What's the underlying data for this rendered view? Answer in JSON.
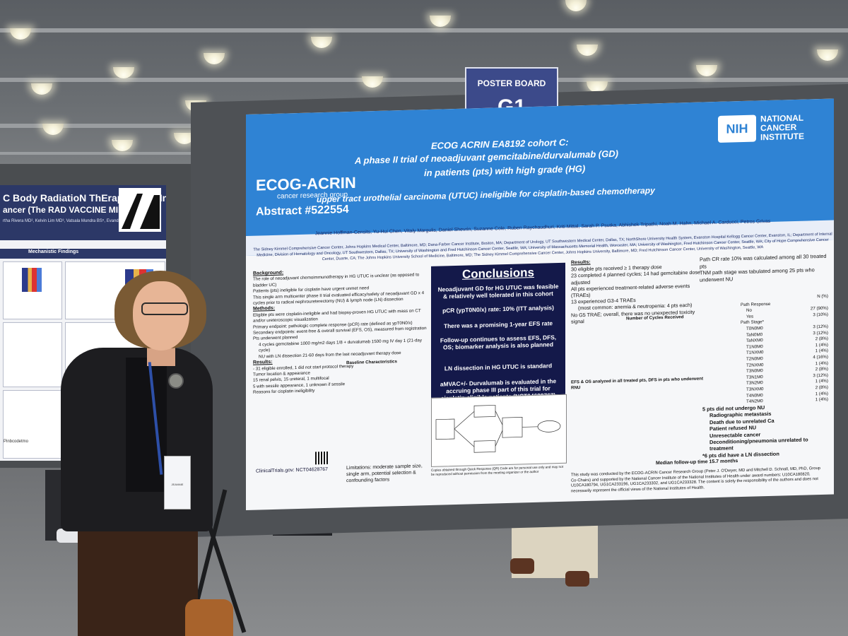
{
  "sign": {
    "label": "POSTER BOARD",
    "code": "G1"
  },
  "left_poster": {
    "title_line1": "C Body RadiatioN ThErapy as an In",
    "title_line2": "ancer (The RAD VACCINE MIBC Trial)",
    "authors": "rtha Rivera MD², Kelvin Lim MD³, Vatsala Mundra BS⁵, Evandro Luna",
    "section": "Mechanistic Findings",
    "footer": "Pinbcodetmo"
  },
  "poster": {
    "logo": "ECOG-ACRIN",
    "logo_sub": "cancer research group",
    "abstract": "Abstract #522554",
    "nih_logo": "NIH",
    "nih_text": [
      "NATIONAL",
      "CANCER",
      "INSTITUTE"
    ],
    "title_lines": [
      "ECOG ACRIN EA8192 cohort C:",
      "A phase II trial of neoadjuvant gemcitabine/durvalumab (GD)",
      "in patients (pts) with high grade (HG)",
      "upper tract urothelial carcinoma (UTUC) ineligible for cisplatin-based chemotherapy"
    ],
    "authors": "Jeannie Hoffman-Censits, Yu-Hui Chen, Vitaly Margulis, Daniel Shevrin, Suzanne Cole, Ruben Raychaudhuri, Kriti Mittal, Sarah P. Psutka, Abhishek Tripathi, Noah M. Hahn, Michael A. Carducci, Petros Grivas",
    "affiliations": "The Sidney Kimmel Comprehensive Cancer Center, Johns Hopkins Medical Center, Baltimore, MD; Dana-Farber Cancer Institute, Boston, MA; Department of Urology, UT Southwestern Medical Center, Dallas, TX; NorthShore University Health System, Evanston Hospital Kellogg Cancer Center, Evanston, IL; Department of Internal Medicine, Division of Hematology and Oncology, UT Southwestern, Dallas, TX; University of Washington and Fred Hutchinson Cancer Center, Seattle, WA; University of Massachusetts Memorial Health, Worcester, MA; University of Washington, Fred Hutchinson Cancer Center, Seattle, WA; City of Hope Comprehensive Cancer Center, Duarte, CA; The Johns Hopkins University School of Medicine, Baltimore, MD; The Sidney Kimmel Comprehensive Cancer Center, Johns Hopkins University, Baltimore, MD; Fred Hutchinson Cancer Center, University of Washington, Seattle, WA",
    "background_head": "Background:",
    "background": [
      "The role of neoadjuvant chemoimmunotherapy in HG UTUC is unclear (as opposed to bladder UC)",
      "Patients (pts) ineligible for cisplatin have urgent unmet need",
      "This single arm multicenter phase II trial evaluated efficacy/safety of neoadjuvant GD x 4 cycles prior to radical nephroureterectomy (NU) & lymph node (LN) dissection"
    ],
    "methods_head": "Methods:",
    "methods": [
      "Eligible pts were cisplatin-ineligible and had biopsy-proven HG UTUC with mass on CT and/or ureteroscopic visualization",
      "Primary endpoint: pathologic complete response (pCR) rate (defined as ypT0N0/x)",
      "Secondary endpoints: event-free & overall survival (EFS, OS), measured from registration",
      "Pts underwent planned",
      "4 cycles gemcitabine 1000 mg/m2 days 1/8 + durvalumab 1500 mg IV day 1 (21-day cycle)",
      "NU with LN dissection 21-60 days from the last neoadjuvant therapy dose"
    ],
    "results_head": "Results:",
    "results_left": [
      "- 31 eligible enrolled, 1 did not start protocol therapy",
      "Tumor location & appearance",
      "15 renal pelvis, 15 ureteral, 1 multifocal",
      "5 with sessile appearance, 1 unknown if sessile",
      "Reasons for cisplatin ineligibility"
    ],
    "baseline_head": "Baseline Characteristics",
    "conclusions_title": "Conclusions",
    "conclusions": [
      "Neoadjuvant GD for HG UTUC was feasible & relatively well tolerated in this cohort",
      "pCR (ypT0N0/x) rate: 10% (ITT analysis)",
      "There was a promising 1-year EFS rate",
      "Follow-up continues to assess EFS, DFS, OS; biomarker analysis is also planned",
      "LN dissection in HG UTUC is standard",
      "aMVAC+/- Durvalumab is evaluated in the accruing phase III part of this trial for cisplatin-eligible patients (NCT04628767)"
    ],
    "results_right_head": "Results:",
    "results_right": [
      "30 eligible pts received ≥ 1 therapy dose",
      "23 completed 4 planned cycles; 14 had gemcitabine dose adjusted",
      "All pts experienced treatment-related adverse events (TRAEs)",
      "13 experienced G3-4 TRAEs",
      "(most common: anemia & neutropenia: 4 pts each)",
      "No G5 TRAE; overall, there was no unexpected toxicity signal"
    ],
    "cycles_head": "Number of Cycles Received",
    "notes_right": [
      "Path CR rate 10% was calculated among all 30 treated pts",
      "TNM path stage was tabulated among 25 pts who underwent NU"
    ],
    "path_table_head": "N (%)",
    "path_response": "Path Response",
    "path_rows": [
      [
        "No",
        "27 (90%)"
      ],
      [
        "Yes",
        "3 (10%)"
      ],
      [
        "T0N0M0",
        "3 (12%)"
      ],
      [
        "TaN0M0",
        "3 (12%)"
      ],
      [
        "TaNXM0",
        "2 (8%)"
      ],
      [
        "T1N0M0",
        "1 (4%)"
      ],
      [
        "T1NXM0",
        "1 (4%)"
      ],
      [
        "T2N0M0",
        "4 (16%)"
      ],
      [
        "T2NXM0",
        "1 (4%)"
      ],
      [
        "T3N0M0",
        "2 (8%)"
      ],
      [
        "T3N1M0",
        "3 (12%)"
      ],
      [
        "T3N2M0",
        "1 (4%)"
      ],
      [
        "T3NXM0",
        "2 (8%)"
      ],
      [
        "T4N0M0",
        "1 (4%)"
      ],
      [
        "T4N2M0",
        "1 (4%)"
      ]
    ],
    "path_stage": "Path Stage*",
    "nu_note_head": "5 pts did not undergo NU",
    "nu_notes": [
      "Radiographic metastasis",
      "Death due to unrelated Ca",
      "Patient refused NU",
      "Unresectable cancer",
      "Deconditioning/pneumonia unrelated to treatment"
    ],
    "ln_note": "*6 pts did have a LN dissection",
    "efs_head": "EFS & OS analyzed in all treated pts, DFS in pts who underwent RNU",
    "followup": "Median follow-up time 15.7 months",
    "limitations": "Limitations: moderate sample size, single arm, potential selection & confounding factors",
    "clinicaltrials": "ClinicalTrials.gov: NCT04628767",
    "copies_note": "Copies obtained through Quick Response (QR) Code are for personal use only and may not be reproduced without permission from the meeting organizer or the author",
    "funding": "This study was conducted by the ECOG-ACRIN Cancer Research Group (Peter J. O'Dwyer, MD and Mitchell D. Schnall, MD, PhD, Group Co-Chairs) and supported by the National Cancer Institute of the National Institutes of Health under award numbers: U10CA180820, U10CA180794, UG1CA233196, UG1CA233302, and UG1CA233328. The content is solely the responsibility of the authors and does not necessarily represent the official views of the National Institutes of Health."
  },
  "badge_name": "JEANNIE"
}
